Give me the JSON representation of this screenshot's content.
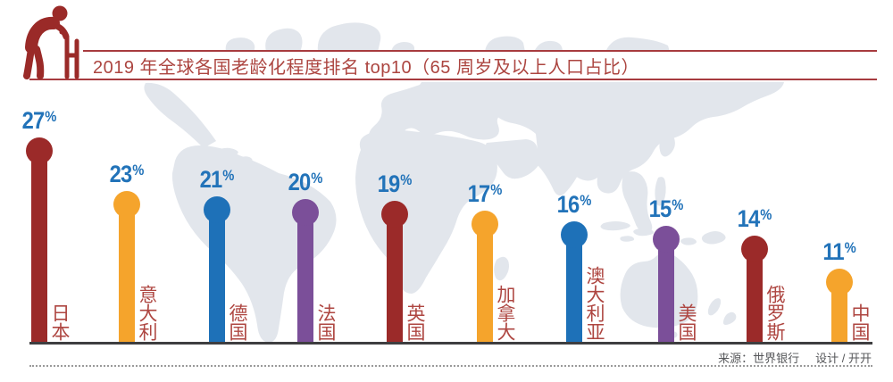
{
  "header": {
    "title": "2019 年全球各国老龄化程度排名 top10（65 周岁及以上人口占比）",
    "icon": "elderly-person-with-walker"
  },
  "footer": {
    "source": "来源：世界银行",
    "design": "设计 / 开开"
  },
  "colors": {
    "dark_red": "#9B2A29",
    "orange": "#F5A42C",
    "blue": "#1E71B8",
    "purple": "#7B4F99",
    "value_label": "#2273B9",
    "country_label": "#AE4641",
    "title_text": "#AC4540",
    "title_rule": "#A73B3F",
    "map_land": "#E2E6EC",
    "baseline": "#3E3E40",
    "footnote": "#56575A"
  },
  "chart_data": {
    "type": "bar",
    "subtype": "lollipop",
    "title": "2019 年全球各国老龄化程度排名 top10（65 周岁及以上人口占比）",
    "categories": [
      "日本",
      "意大利",
      "德国",
      "法国",
      "英国",
      "加拿大",
      "澳大利亚",
      "美国",
      "俄罗斯",
      "中国"
    ],
    "values": [
      27,
      23,
      21,
      20,
      19,
      17,
      16,
      15,
      14,
      11
    ],
    "unit": "%",
    "point_colors": [
      "#9B2A29",
      "#F5A42C",
      "#1E71B8",
      "#7B4F99",
      "#9B2A29",
      "#F5A42C",
      "#1E71B8",
      "#7B4F99",
      "#9B2A29",
      "#F5A42C"
    ],
    "value_label_color": "#2273B9",
    "category_label_color": "#AE4641",
    "xlabel": "",
    "ylabel": "",
    "legend": false,
    "grid": false,
    "background": "world-map",
    "source": "来源：世界银行"
  }
}
